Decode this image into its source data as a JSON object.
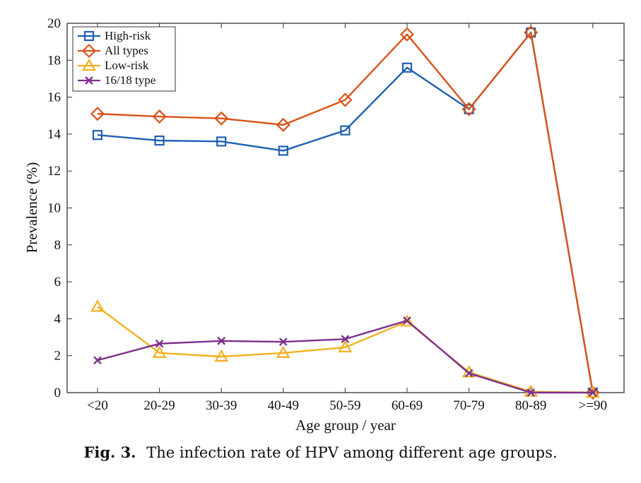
{
  "chart_data": {
    "type": "line",
    "categories": [
      "<20",
      "20-29",
      "30-39",
      "40-49",
      "50-59",
      "60-69",
      "70-79",
      "80-89",
      ">=90"
    ],
    "xlabel": "Age group / year",
    "ylabel": "Prevalence (%)",
    "ylim": [
      0,
      20
    ],
    "yticks": [
      0,
      2,
      4,
      6,
      8,
      10,
      12,
      14,
      16,
      18,
      20
    ],
    "grid": false,
    "legend_position": "top-left",
    "series": [
      {
        "name": "High-risk",
        "marker": "square",
        "color": "#1f5fb4",
        "values": [
          13.95,
          13.65,
          13.6,
          13.1,
          14.2,
          17.6,
          15.35,
          19.5,
          0
        ]
      },
      {
        "name": "All types",
        "marker": "diamond",
        "color": "#d95319",
        "values": [
          15.1,
          14.95,
          14.85,
          14.5,
          15.85,
          19.4,
          15.35,
          19.5,
          0
        ]
      },
      {
        "name": "Low-risk",
        "marker": "triangle",
        "color": "#f2b01e",
        "values": [
          4.65,
          2.15,
          1.95,
          2.15,
          2.45,
          3.85,
          1.1,
          0.05,
          0
        ]
      },
      {
        "name": "16/18 type",
        "marker": "x",
        "color": "#7e2f8e",
        "values": [
          1.75,
          2.65,
          2.8,
          2.75,
          2.9,
          3.9,
          1.05,
          0,
          0
        ]
      }
    ]
  },
  "caption": {
    "label": "Fig. 3.",
    "text": "The infection rate of HPV among different age groups."
  }
}
